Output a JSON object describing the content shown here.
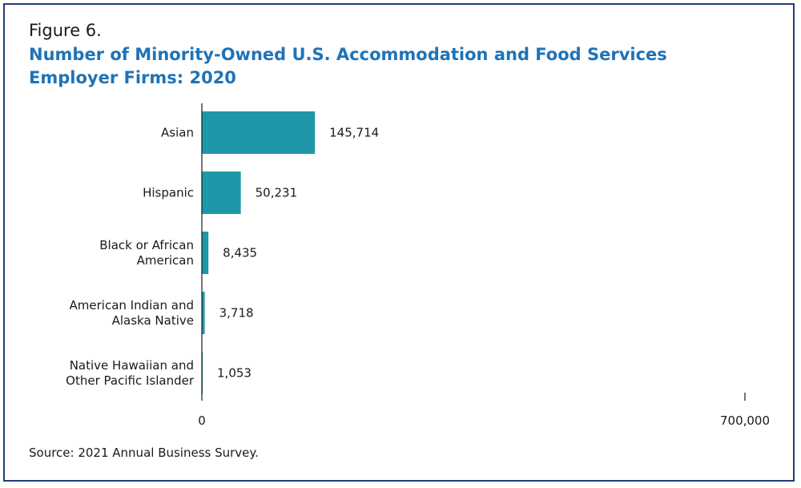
{
  "figure_label": "Figure 6.",
  "source": "Source: 2021 Annual Business Survey.",
  "colors": {
    "bar": "#1e98a8",
    "title": "#1f73b7",
    "frame": "#1f3f73",
    "axis": "#1a1a1a"
  },
  "chart_data": {
    "type": "bar",
    "orientation": "horizontal",
    "title": "Number of Minority-Owned U.S. Accommodation and Food Services Employer Firms: 2020",
    "categories": [
      [
        "Asian"
      ],
      [
        "Hispanic"
      ],
      [
        "Black or African",
        "American"
      ],
      [
        "American Indian and",
        "Alaska Native"
      ],
      [
        "Native Hawaiian and",
        "Other Pacific Islander"
      ]
    ],
    "values": [
      145714,
      50231,
      8435,
      3718,
      1053
    ],
    "value_labels": [
      "145,714",
      "50,231",
      "8,435",
      "3,718",
      "1,053"
    ],
    "xlim": [
      0,
      700000
    ],
    "x_tick_labels": [
      "0",
      "700,000"
    ],
    "xlabel": "",
    "ylabel": "",
    "grid": false,
    "legend": false
  }
}
